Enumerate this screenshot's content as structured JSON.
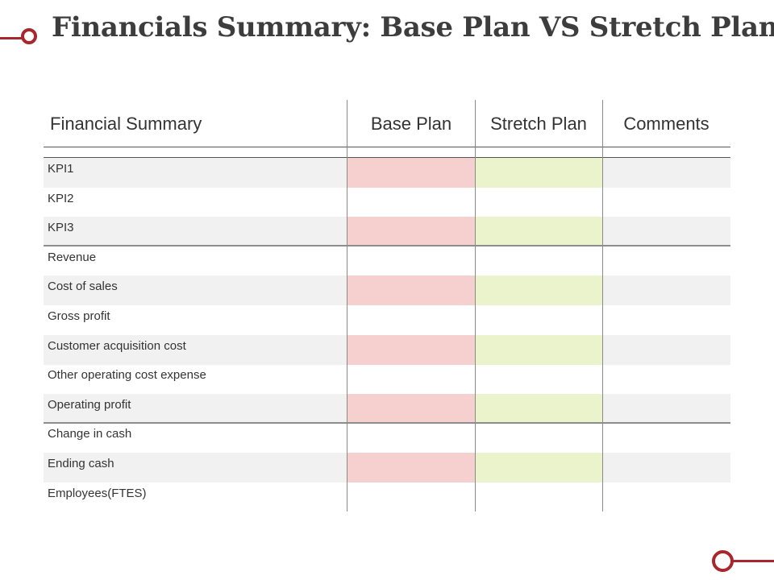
{
  "title": "Financials Summary: Base Plan VS Stretch Plan",
  "colors": {
    "accent": "#a7282c",
    "base_highlight": "#f6d0cf",
    "stretch_highlight": "#ebf3cc",
    "row_shade": "#f1f1f1"
  },
  "table": {
    "columns": [
      "Financial Summary",
      "Base Plan",
      "Stretch Plan",
      "Comments"
    ],
    "rows": [
      {
        "label": "KPI1",
        "base": "",
        "stretch": "",
        "comments": ""
      },
      {
        "label": "KPI2",
        "base": "",
        "stretch": "",
        "comments": ""
      },
      {
        "label": "KPI3",
        "base": "",
        "stretch": "",
        "comments": ""
      },
      {
        "label": "Revenue",
        "base": "",
        "stretch": "",
        "comments": ""
      },
      {
        "label": "Cost of sales",
        "base": "",
        "stretch": "",
        "comments": ""
      },
      {
        "label": "Gross profit",
        "base": "",
        "stretch": "",
        "comments": ""
      },
      {
        "label": "Customer acquisition cost",
        "base": "",
        "stretch": "",
        "comments": ""
      },
      {
        "label": "Other operating cost expense",
        "base": "",
        "stretch": "",
        "comments": ""
      },
      {
        "label": "Operating profit",
        "base": "",
        "stretch": "",
        "comments": ""
      },
      {
        "label": "Change in cash",
        "base": "",
        "stretch": "",
        "comments": ""
      },
      {
        "label": "Ending cash",
        "base": "",
        "stretch": "",
        "comments": ""
      },
      {
        "label": "Employees(FTES)",
        "base": "",
        "stretch": "",
        "comments": ""
      }
    ]
  }
}
